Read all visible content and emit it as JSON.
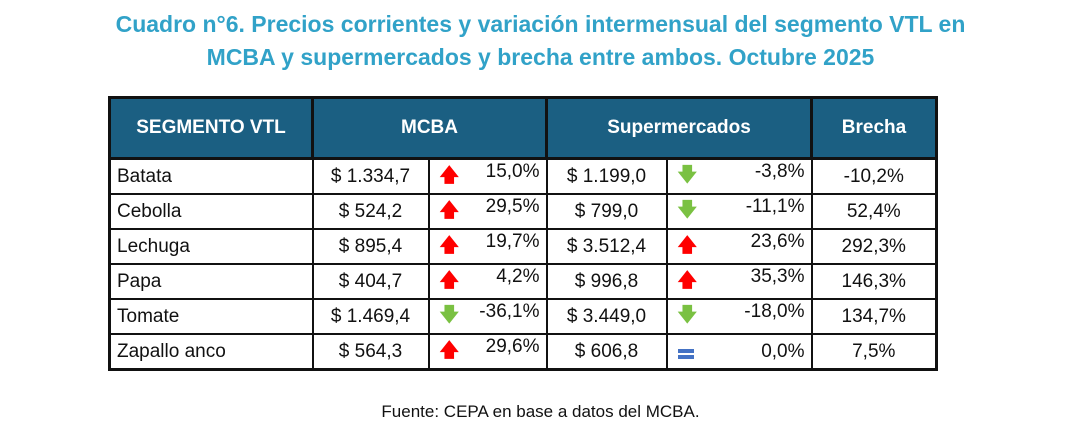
{
  "title_line1": "Cuadro n°6.  Precios corrientes y variación intermensual del segmento VTL en",
  "title_line2": "MCBA y supermercados y brecha entre ambos. Octubre 2025",
  "headers": {
    "segment": "SEGMENTO VTL",
    "mcba": "MCBA",
    "super": "Supermercados",
    "brecha": "Brecha"
  },
  "rows": [
    {
      "name": "Batata",
      "mcba_price": "$ 1.334,7",
      "mcba_icon": "up",
      "mcba_var": "15,0%",
      "super_price": "$ 1.199,0",
      "super_icon": "down",
      "super_var": "-3,8%",
      "brecha": "-10,2%"
    },
    {
      "name": "Cebolla",
      "mcba_price": "$ 524,2",
      "mcba_icon": "up",
      "mcba_var": "29,5%",
      "super_price": "$ 799,0",
      "super_icon": "down",
      "super_var": "-11,1%",
      "brecha": "52,4%"
    },
    {
      "name": "Lechuga",
      "mcba_price": "$ 895,4",
      "mcba_icon": "up",
      "mcba_var": "19,7%",
      "super_price": "$ 3.512,4",
      "super_icon": "up",
      "super_var": "23,6%",
      "brecha": "292,3%"
    },
    {
      "name": "Papa",
      "mcba_price": "$ 404,7",
      "mcba_icon": "up",
      "mcba_var": "4,2%",
      "super_price": "$ 996,8",
      "super_icon": "up",
      "super_var": "35,3%",
      "brecha": "146,3%"
    },
    {
      "name": "Tomate",
      "mcba_price": "$ 1.469,4",
      "mcba_icon": "down",
      "mcba_var": "-36,1%",
      "super_price": "$ 3.449,0",
      "super_icon": "down",
      "super_var": "-18,0%",
      "brecha": "134,7%"
    },
    {
      "name": "Zapallo anco",
      "mcba_price": "$ 564,3",
      "mcba_icon": "up",
      "mcba_var": "29,6%",
      "super_price": "$ 606,8",
      "super_icon": "equal",
      "super_var": "0,0%",
      "brecha": "7,5%"
    }
  ],
  "source": "Fuente: CEPA en base a datos del MCBA.",
  "colors": {
    "title": "#31a2c8",
    "header_bg": "#1b5f82",
    "up": "#ff0000",
    "down": "#7ac142",
    "equal": "#4472c4"
  }
}
